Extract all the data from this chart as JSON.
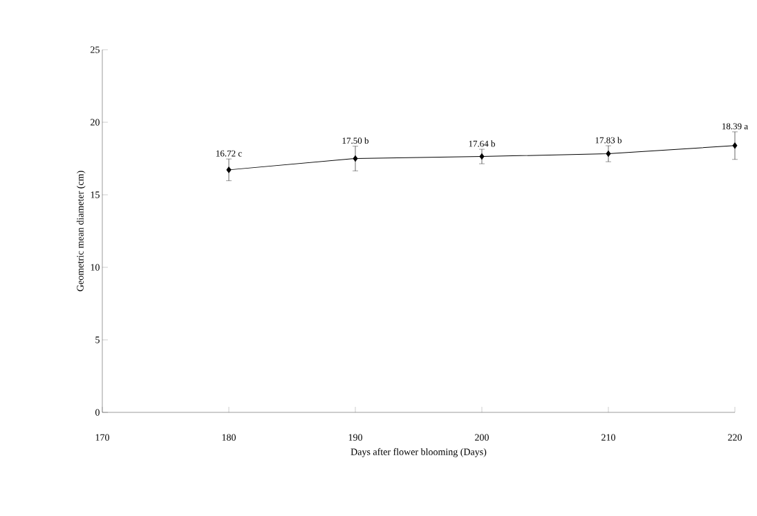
{
  "chart_data": {
    "type": "line",
    "xlabel": "Days after flower blooming (Days)",
    "ylabel": "Geometric mean diameter (cm)",
    "x": [
      180,
      190,
      200,
      210,
      220
    ],
    "values": [
      16.72,
      17.5,
      17.64,
      17.83,
      18.39
    ],
    "errors": [
      0.75,
      0.85,
      0.5,
      0.55,
      0.95
    ],
    "value_labels": [
      "16.72 c",
      "17.50 b",
      "17.64 b",
      "17.83 b",
      "18.39 a"
    ],
    "color": "#000000",
    "marker": "diamond",
    "line_style": "solid",
    "xlim": [
      170,
      220
    ],
    "xticks": [
      170,
      180,
      190,
      200,
      210,
      220
    ],
    "ylim": [
      0,
      25
    ],
    "yticks": [
      0,
      5,
      10,
      15,
      20,
      25
    ],
    "grid": false
  }
}
